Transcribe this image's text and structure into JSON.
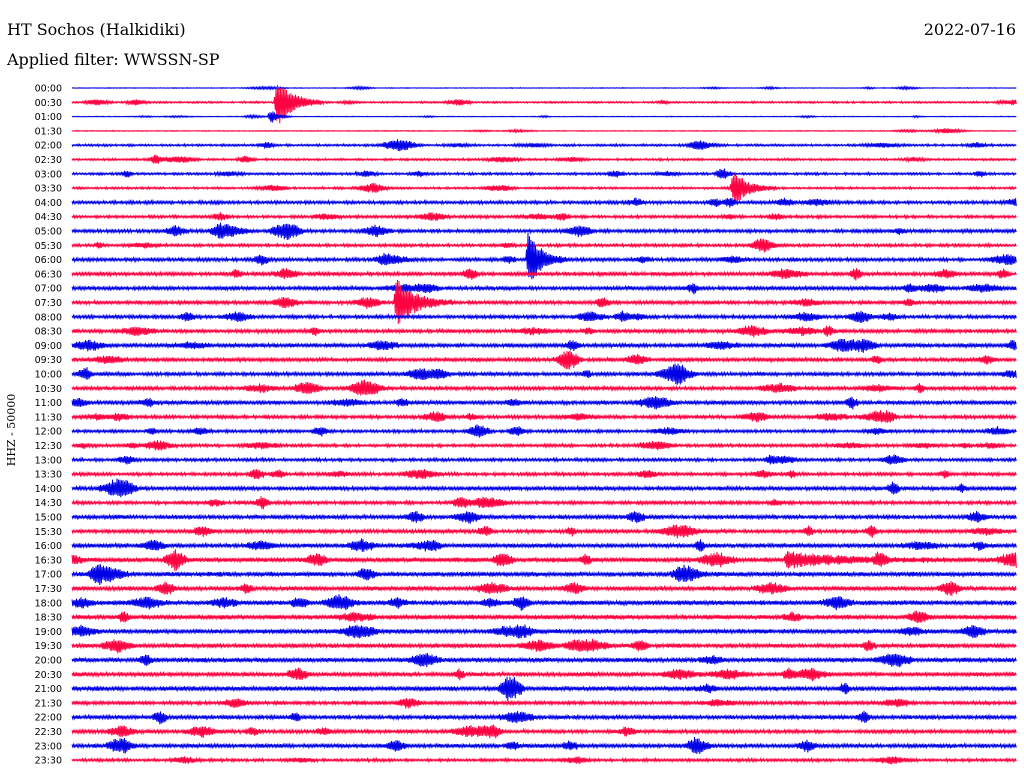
{
  "header": {
    "station": "HT Sochos (Halkidiki)",
    "date": "2022-07-16",
    "filter_label": "Applied filter: WWSSN-SP"
  },
  "axis": {
    "channel_label": "HHZ - 50000"
  },
  "colors": {
    "even_trace": "#0000e6",
    "odd_trace": "#ff0040",
    "background": "#ffffff"
  },
  "chart_data": {
    "type": "line",
    "title": "HT Sochos (Halkidiki)",
    "subtitle": "Applied filter: WWSSN-SP",
    "ylabel": "HHZ - 50000",
    "date": "2022-07-16",
    "row_labels": [
      "00:00",
      "00:30",
      "01:00",
      "01:30",
      "02:00",
      "02:30",
      "03:00",
      "03:30",
      "04:00",
      "04:30",
      "05:00",
      "05:30",
      "06:00",
      "06:30",
      "07:00",
      "07:30",
      "08:00",
      "08:30",
      "09:00",
      "09:30",
      "10:00",
      "10:30",
      "11:00",
      "11:30",
      "12:00",
      "12:30",
      "13:00",
      "13:30",
      "14:00",
      "14:30",
      "15:00",
      "15:30",
      "16:00",
      "16:30",
      "17:00",
      "17:30",
      "18:00",
      "18:30",
      "19:00",
      "19:30",
      "20:00",
      "20:30",
      "21:00",
      "21:30",
      "22:00",
      "22:30",
      "23:00",
      "23:30"
    ],
    "minutes_per_row": 30,
    "background_level": [
      0.4,
      1,
      0.4,
      0.5,
      1.2,
      1.2,
      1.3,
      1.2,
      1.8,
      1.6,
      1.9,
      1.6,
      1.9,
      2.0,
      2.1,
      2.0,
      1.9,
      2.0,
      2.2,
      2.1,
      2.0,
      2.0,
      2.2,
      1.9,
      1.7,
      1.7,
      1.7,
      1.8,
      2.2,
      1.9,
      2.2,
      2.0,
      2.3,
      2.6,
      2.6,
      2.4,
      2.6,
      2.5,
      2.5,
      2.3,
      2.5,
      2.3,
      2.5,
      2.0,
      2.2,
      2.0,
      2.2,
      1.6
    ],
    "events": [
      {
        "row": 1,
        "minute": 6.5,
        "amplitude": 24,
        "duration_min": 1.5
      },
      {
        "row": 2,
        "minute": 6.3,
        "amplitude": 7,
        "duration_min": 0.7
      },
      {
        "row": 7,
        "minute": 21,
        "amplitude": 16,
        "duration_min": 1.4
      },
      {
        "row": 12,
        "minute": 14.5,
        "amplitude": 28,
        "duration_min": 1.2
      },
      {
        "row": 15,
        "minute": 10.3,
        "amplitude": 24,
        "duration_min": 1.8
      },
      {
        "row": 33,
        "minute": 22.7,
        "amplitude": 7,
        "duration_min": 5
      }
    ]
  }
}
